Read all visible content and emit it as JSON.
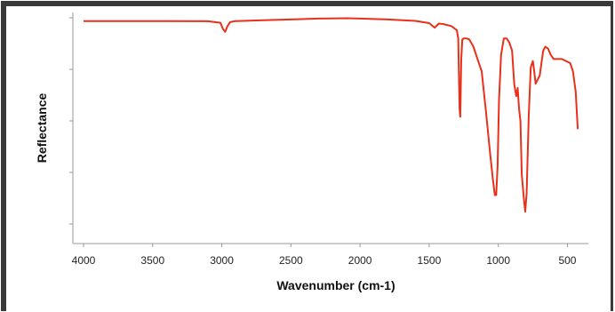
{
  "chart_data": {
    "type": "line",
    "title": "",
    "xlabel": "Wavenumber (cm-1)",
    "ylabel": "Reflectance",
    "xlim": [
      4000,
      420
    ],
    "x_reversed": true,
    "ylim": [
      0,
      1
    ],
    "x_ticks": [
      "4000",
      "3500",
      "3000",
      "2500",
      "2000",
      "1500",
      "1000",
      "500"
    ],
    "grid": false,
    "legend": "none",
    "colors": {
      "line": "#e8301a",
      "axis": "#999999"
    },
    "series": [
      {
        "x": [
          4000,
          3700,
          3400,
          3100,
          3010,
          2990,
          2975,
          2960,
          2940,
          2900,
          2700,
          2500,
          2300,
          2100,
          2000,
          1800,
          1600,
          1500,
          1460,
          1430,
          1400,
          1340,
          1300,
          1290,
          1280,
          1275,
          1268,
          1260,
          1250,
          1230,
          1210,
          1180,
          1150,
          1120,
          1090,
          1060,
          1040,
          1025,
          1015,
          1005,
          995,
          980,
          960,
          940,
          920,
          900,
          885,
          870,
          860,
          850,
          840,
          830,
          815,
          805,
          795,
          780,
          765,
          750,
          740,
          730,
          715,
          700,
          690,
          675,
          660,
          640,
          620,
          600,
          570,
          540,
          510,
          480,
          460,
          440,
          425
        ],
        "y": [
          0.984,
          0.984,
          0.984,
          0.983,
          0.976,
          0.944,
          0.932,
          0.958,
          0.979,
          0.984,
          0.988,
          0.992,
          0.996,
          0.998,
          0.996,
          0.992,
          0.985,
          0.974,
          0.952,
          0.972,
          0.97,
          0.96,
          0.94,
          0.9,
          0.56,
          0.52,
          0.8,
          0.895,
          0.9,
          0.9,
          0.895,
          0.86,
          0.8,
          0.74,
          0.55,
          0.35,
          0.22,
          0.14,
          0.14,
          0.28,
          0.6,
          0.82,
          0.9,
          0.9,
          0.88,
          0.84,
          0.68,
          0.62,
          0.66,
          0.56,
          0.5,
          0.24,
          0.12,
          0.06,
          0.15,
          0.52,
          0.76,
          0.79,
          0.74,
          0.68,
          0.7,
          0.72,
          0.77,
          0.84,
          0.86,
          0.85,
          0.82,
          0.8,
          0.8,
          0.8,
          0.79,
          0.78,
          0.74,
          0.64,
          0.46
        ]
      }
    ]
  }
}
